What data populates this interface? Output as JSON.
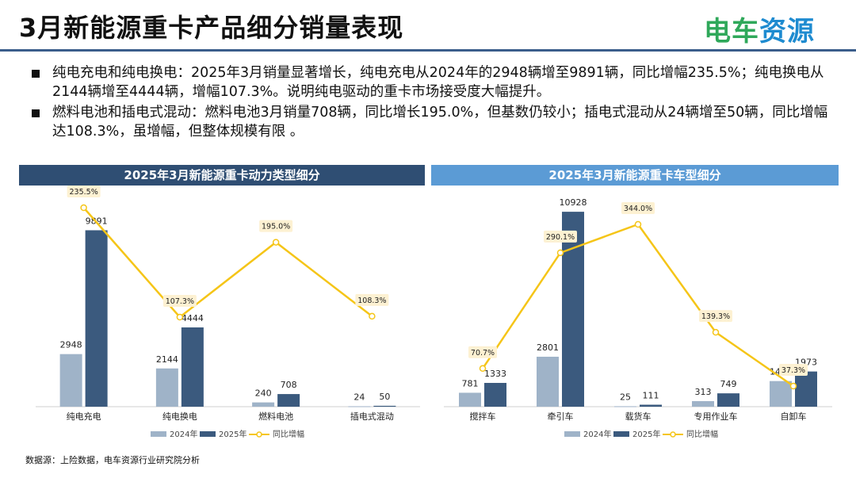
{
  "header": {
    "title": "3月新能源重卡产品细分销量表现",
    "logo": "电车资源"
  },
  "bullets": [
    "纯电充电和纯电换电：2025年3月销量显著增长，纯电充电从2024年的2948辆增至9891辆，同比增幅235.5%；纯电换电从2144辆增至4444辆，增幅107.3%。说明纯电驱动的重卡市场接受度大幅提升。",
    "燃料电池和插电式混动：燃料电池3月销量708辆，同比增长195.0%，但基数仍较小；插电式混动从24辆增至50辆，同比增幅达108.3%，虽增幅，但整体规模有限 。"
  ],
  "source": "数据源：上险数据，电车资源行业研究院分析",
  "colors": {
    "y2024": "#9fb3c8",
    "y2025": "#3b5a7e",
    "growth": "#f5c518"
  },
  "chart_data": [
    {
      "type": "bar",
      "title": "2025年3月新能源重卡动力类型细分",
      "categories": [
        "纯电充电",
        "纯电换电",
        "燃料电池",
        "插电式混动"
      ],
      "series": [
        {
          "name": "2024年",
          "values": [
            2948,
            2144,
            240,
            24
          ]
        },
        {
          "name": "2025年",
          "values": [
            9891,
            4444,
            708,
            50
          ]
        },
        {
          "name": "同比增幅",
          "type": "line",
          "values": [
            235.5,
            107.3,
            195.0,
            108.3
          ],
          "labels": [
            "235.5%",
            "107.3%",
            "195.0%",
            "108.3%"
          ]
        }
      ],
      "legend": "bottom"
    },
    {
      "type": "bar",
      "title": "2025年3月新能源重卡车型细分",
      "categories": [
        "搅拌车",
        "牵引车",
        "载货车",
        "专用作业车",
        "自卸车"
      ],
      "series": [
        {
          "name": "2024年",
          "values": [
            781,
            2801,
            25,
            313,
            1436
          ]
        },
        {
          "name": "2025年",
          "values": [
            1333,
            10928,
            111,
            749,
            1973
          ]
        },
        {
          "name": "同比增幅",
          "type": "line",
          "values": [
            70.7,
            290.1,
            344.0,
            139.3,
            37.3
          ],
          "labels": [
            "70.7%",
            "290.1%",
            "344.0%",
            "139.3%",
            "37.3%"
          ]
        }
      ],
      "legend": "bottom"
    }
  ]
}
